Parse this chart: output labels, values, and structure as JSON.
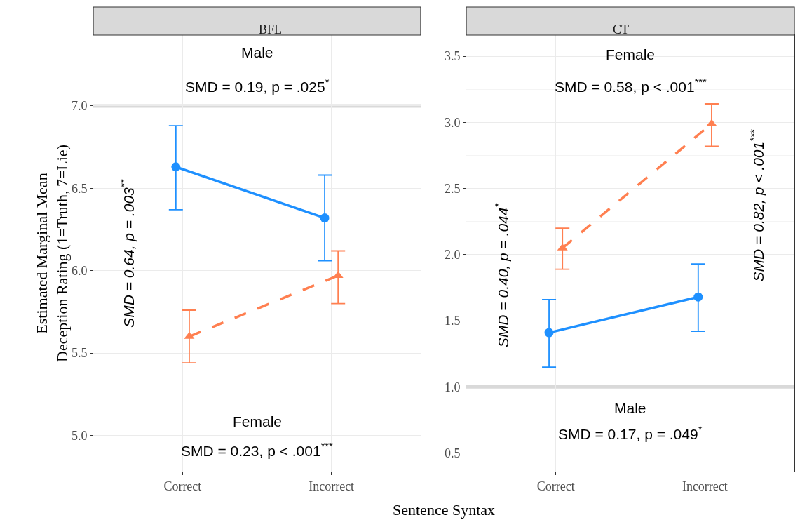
{
  "chart_data": [
    {
      "type": "line",
      "title": "BFL",
      "xlabel": "Sentence Syntax",
      "ylabel": "Estimated Marginal Mean\nDeception Rating (1=Truth, 7=Lie)",
      "categories": [
        "Correct",
        "Incorrect"
      ],
      "series": [
        {
          "color": "#1e90ff",
          "values": [
            6.63,
            6.32
          ],
          "errors": [
            [
              6.37,
              6.88
            ],
            [
              6.06,
              6.58
            ]
          ],
          "marker": "circle",
          "line_style": "solid"
        },
        {
          "color": "#ff7f50",
          "values": [
            5.6,
            5.97
          ],
          "errors": [
            [
              5.44,
              5.76
            ],
            [
              5.8,
              6.12
            ]
          ],
          "marker": "triangle",
          "line_style": "dashed"
        }
      ],
      "ylim": [
        4.78,
        7.43
      ],
      "yticks": [
        {
          "value": 5,
          "label": "5.0"
        },
        5.5,
        {
          "value": 6,
          "label": "6.0"
        },
        6.5,
        {
          "value": 7,
          "label": "7.0"
        }
      ],
      "grid": true,
      "ref_lines": [
        {
          "axis": "y",
          "value": 7.0,
          "color": "#d9d9d9"
        }
      ],
      "annotations": [
        "Male",
        "SMD = 0.19, p = .025$^{*}$",
        "Female",
        "SMD = 0.23, p < .001$^{***}$",
        "SMD = 0.64, p = .003$^{**}$"
      ]
    },
    {
      "type": "line",
      "title": "CT",
      "categories": [
        "Correct",
        "Incorrect"
      ],
      "series": [
        {
          "color": "#1e90ff",
          "values": [
            1.41,
            1.68
          ],
          "errors": [
            [
              1.15,
              1.66
            ],
            [
              1.42,
              1.93
            ]
          ],
          "marker": "circle",
          "line_style": "solid"
        },
        {
          "color": "#ff7f50",
          "values": [
            2.05,
            2.99
          ],
          "errors": [
            [
              1.89,
              2.2
            ],
            [
              2.82,
              3.14
            ]
          ],
          "marker": "triangle",
          "line_style": "dashed"
        }
      ],
      "ylim": [
        0.36,
        3.66
      ],
      "yticks": [
        0.5,
        {
          "value": 1,
          "label": "1.0"
        },
        1.5,
        {
          "value": 2,
          "label": "2.0"
        },
        2.5,
        {
          "value": 3,
          "label": "3.0"
        },
        3.5
      ],
      "grid": true,
      "ref_lines": [
        {
          "axis": "y",
          "value": 1.0,
          "color": "#d9d9d9"
        }
      ],
      "annotations": [
        "Female",
        "SMD = 0.58, p < .001$^{***}$",
        "Male",
        "SMD = 0.17, p = .049$^{*}$",
        "SMD = 0.40, p = .044$^{*}$",
        "SMD = 0.82, p < .001$^{***}$"
      ]
    }
  ]
}
